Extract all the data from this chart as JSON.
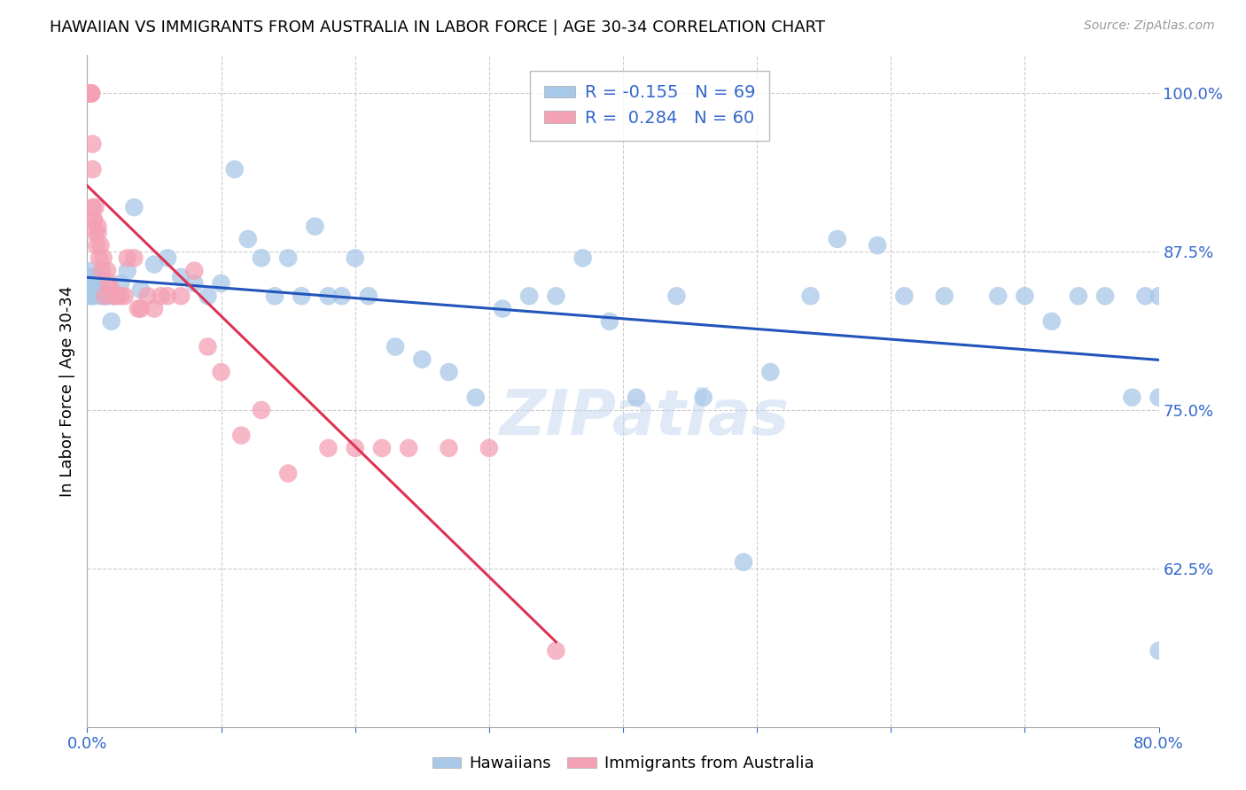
{
  "title": "HAWAIIAN VS IMMIGRANTS FROM AUSTRALIA IN LABOR FORCE | AGE 30-34 CORRELATION CHART",
  "source": "Source: ZipAtlas.com",
  "ylabel": "In Labor Force | Age 30-34",
  "x_min": 0.0,
  "x_max": 0.8,
  "y_min": 0.5,
  "y_max": 1.03,
  "y_ticks": [
    0.625,
    0.75,
    0.875,
    1.0
  ],
  "y_tick_labels": [
    "62.5%",
    "75.0%",
    "87.5%",
    "100.0%"
  ],
  "blue_R": -0.155,
  "blue_N": 69,
  "pink_R": 0.284,
  "pink_N": 60,
  "blue_color": "#a8c8e8",
  "pink_color": "#f4a0b5",
  "blue_line_color": "#2255bb",
  "pink_line_color": "#dd3355",
  "watermark": "ZIPatlas",
  "hawaiians_x": [
    0.001,
    0.002,
    0.002,
    0.003,
    0.003,
    0.004,
    0.004,
    0.005,
    0.005,
    0.006,
    0.007,
    0.008,
    0.009,
    0.01,
    0.012,
    0.013,
    0.015,
    0.018,
    0.02,
    0.025,
    0.03,
    0.035,
    0.04,
    0.05,
    0.06,
    0.07,
    0.08,
    0.09,
    0.1,
    0.11,
    0.12,
    0.13,
    0.14,
    0.15,
    0.16,
    0.17,
    0.18,
    0.19,
    0.2,
    0.21,
    0.23,
    0.25,
    0.27,
    0.29,
    0.31,
    0.33,
    0.35,
    0.37,
    0.39,
    0.41,
    0.44,
    0.46,
    0.49,
    0.51,
    0.54,
    0.56,
    0.59,
    0.61,
    0.64,
    0.68,
    0.7,
    0.72,
    0.74,
    0.76,
    0.78,
    0.79,
    0.8,
    0.8,
    0.8
  ],
  "hawaiians_y": [
    0.84,
    0.855,
    0.845,
    0.86,
    0.84,
    0.85,
    0.855,
    0.845,
    0.84,
    0.845,
    0.85,
    0.855,
    0.845,
    0.84,
    0.845,
    0.84,
    0.84,
    0.82,
    0.84,
    0.85,
    0.86,
    0.91,
    0.845,
    0.865,
    0.87,
    0.855,
    0.85,
    0.84,
    0.85,
    0.94,
    0.885,
    0.87,
    0.84,
    0.87,
    0.84,
    0.895,
    0.84,
    0.84,
    0.87,
    0.84,
    0.8,
    0.79,
    0.78,
    0.76,
    0.83,
    0.84,
    0.84,
    0.87,
    0.82,
    0.76,
    0.84,
    0.76,
    0.63,
    0.78,
    0.84,
    0.885,
    0.88,
    0.84,
    0.84,
    0.84,
    0.84,
    0.82,
    0.84,
    0.84,
    0.76,
    0.84,
    0.56,
    0.84,
    0.76
  ],
  "australia_x": [
    0.0005,
    0.0005,
    0.001,
    0.001,
    0.001,
    0.001,
    0.0015,
    0.002,
    0.002,
    0.002,
    0.002,
    0.003,
    0.003,
    0.003,
    0.003,
    0.003,
    0.004,
    0.004,
    0.004,
    0.005,
    0.005,
    0.006,
    0.006,
    0.007,
    0.008,
    0.008,
    0.009,
    0.01,
    0.011,
    0.012,
    0.013,
    0.015,
    0.016,
    0.018,
    0.02,
    0.022,
    0.025,
    0.028,
    0.03,
    0.035,
    0.038,
    0.04,
    0.045,
    0.05,
    0.055,
    0.06,
    0.07,
    0.08,
    0.09,
    0.1,
    0.115,
    0.13,
    0.15,
    0.18,
    0.2,
    0.22,
    0.24,
    0.27,
    0.3,
    0.35
  ],
  "australia_y": [
    1.0,
    1.0,
    1.0,
    1.0,
    1.0,
    1.0,
    1.0,
    1.0,
    1.0,
    1.0,
    1.0,
    1.0,
    1.0,
    1.0,
    1.0,
    1.0,
    0.96,
    0.94,
    0.91,
    0.9,
    0.9,
    0.91,
    0.89,
    0.88,
    0.89,
    0.895,
    0.87,
    0.88,
    0.86,
    0.87,
    0.84,
    0.86,
    0.85,
    0.845,
    0.84,
    0.84,
    0.84,
    0.84,
    0.87,
    0.87,
    0.83,
    0.83,
    0.84,
    0.83,
    0.84,
    0.84,
    0.84,
    0.86,
    0.8,
    0.78,
    0.73,
    0.75,
    0.7,
    0.72,
    0.72,
    0.72,
    0.72,
    0.72,
    0.72,
    0.56
  ]
}
